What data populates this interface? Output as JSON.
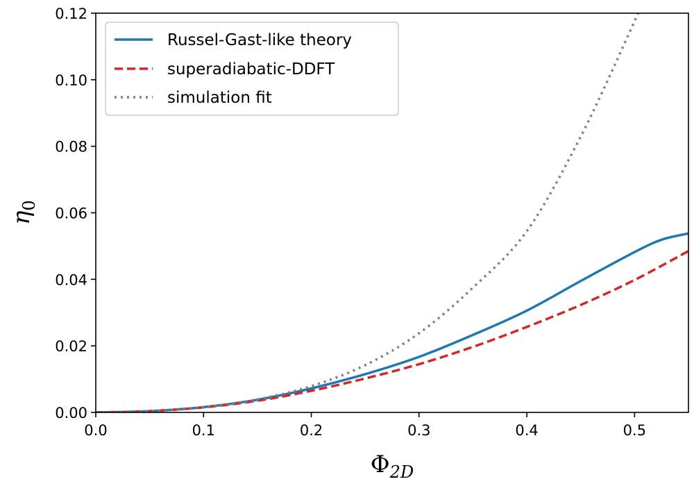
{
  "chart_data": {
    "type": "line",
    "title": "",
    "xlabel": {
      "main": "Φ",
      "sub": "2D"
    },
    "ylabel": {
      "main": "η",
      "sub": "0"
    },
    "xlim": [
      0.0,
      0.55
    ],
    "ylim": [
      0.0,
      0.12
    ],
    "xticks": [
      0.0,
      0.1,
      0.2,
      0.3,
      0.4,
      0.5
    ],
    "yticks": [
      0.0,
      0.02,
      0.04,
      0.06,
      0.08,
      0.1,
      0.12
    ],
    "xtick_labels": [
      "0.0",
      "0.1",
      "0.2",
      "0.3",
      "0.4",
      "0.5"
    ],
    "ytick_labels": [
      "0.00",
      "0.02",
      "0.04",
      "0.06",
      "0.08",
      "0.10",
      "0.12"
    ],
    "grid": false,
    "legend_position": "top-left",
    "series": [
      {
        "name": "Russel-Gast-like theory",
        "color": "#1f77b4",
        "style": "solid",
        "x": [
          0.0,
          0.05,
          0.1,
          0.15,
          0.2,
          0.25,
          0.3,
          0.35,
          0.4,
          0.45,
          0.5,
          0.525,
          0.55
        ],
        "y": [
          0.0,
          0.0004,
          0.0016,
          0.0038,
          0.0072,
          0.0115,
          0.0167,
          0.0233,
          0.0306,
          0.0395,
          0.0482,
          0.0519,
          0.0538
        ]
      },
      {
        "name": "superadiabatic-DDFT",
        "color": "#d62728",
        "style": "dashed",
        "x": [
          0.0,
          0.05,
          0.1,
          0.15,
          0.2,
          0.25,
          0.3,
          0.35,
          0.4,
          0.45,
          0.5,
          0.55
        ],
        "y": [
          0.0,
          0.0004,
          0.0015,
          0.0035,
          0.0065,
          0.0102,
          0.0145,
          0.0197,
          0.0257,
          0.0323,
          0.0398,
          0.0485
        ]
      },
      {
        "name": "simulation fit",
        "color": "#7f7f7f",
        "style": "dotted",
        "x": [
          0.0,
          0.05,
          0.1,
          0.15,
          0.2,
          0.25,
          0.3,
          0.35,
          0.4,
          0.45,
          0.5,
          0.502
        ],
        "y": [
          0.0,
          0.0004,
          0.0016,
          0.0039,
          0.0079,
          0.0142,
          0.0238,
          0.0375,
          0.0545,
          0.0829,
          0.1176,
          0.12
        ]
      }
    ]
  }
}
